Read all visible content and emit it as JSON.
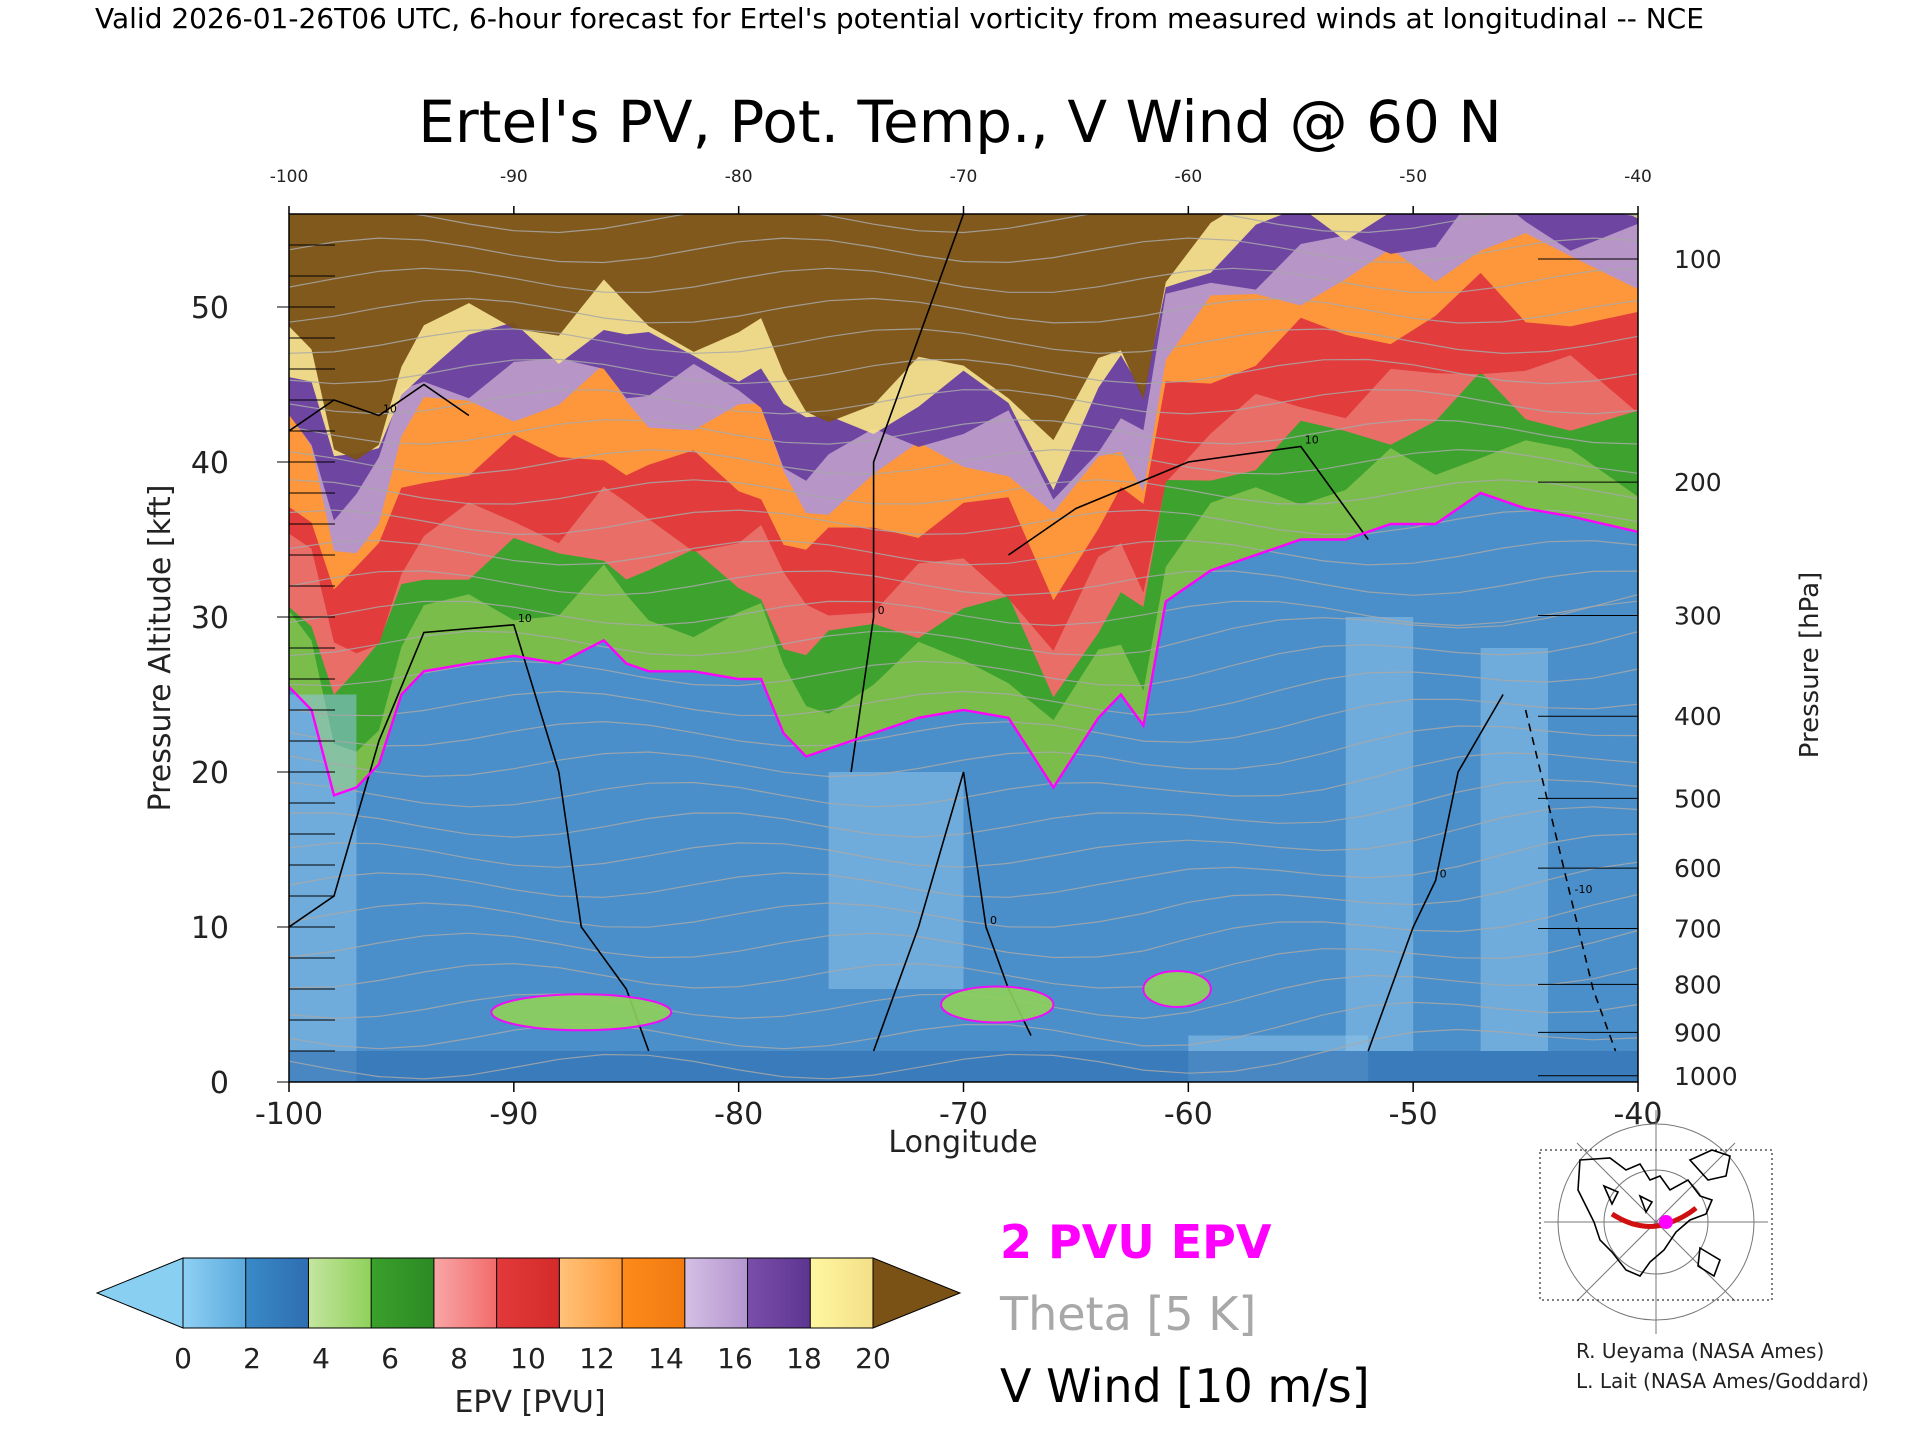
{
  "header": {
    "valid_line": "Valid 2026-01-26T06 UTC, 6-hour forecast for Ertel's potential vorticity from measured winds at longitudinal -- NCE"
  },
  "chart_data": {
    "type": "heatmap",
    "title": "Ertel's PV, Pot. Temp., V Wind @ 60 N",
    "xlabel": "Longitude",
    "ylabel_left": "Pressure Altitude [kft]",
    "ylabel_right": "Pressure [hPa]",
    "xlim": [
      -100,
      -40
    ],
    "ylim": [
      0,
      56
    ],
    "x_ticks": [
      "-100",
      "-90",
      "-80",
      "-70",
      "-60",
      "-50",
      "-40"
    ],
    "x_tick_values": [
      -100,
      -90,
      -80,
      -70,
      -60,
      -50,
      -40
    ],
    "x_ticks_top": [
      "-100",
      "-90",
      "-80",
      "-70",
      "-60",
      "-50",
      "-40"
    ],
    "y_ticks": [
      "0",
      "10",
      "20",
      "30",
      "40",
      "50"
    ],
    "y_tick_values": [
      0,
      10,
      20,
      30,
      40,
      50
    ],
    "pressure_ticks": [
      {
        "label": "1000",
        "kft": 0.4
      },
      {
        "label": "900",
        "kft": 3.2
      },
      {
        "label": "800",
        "kft": 6.3
      },
      {
        "label": "700",
        "kft": 9.9
      },
      {
        "label": "600",
        "kft": 13.8
      },
      {
        "label": "500",
        "kft": 18.3
      },
      {
        "label": "400",
        "kft": 23.6
      },
      {
        "label": "300",
        "kft": 30.1
      },
      {
        "label": "200",
        "kft": 38.7
      },
      {
        "label": "100",
        "kft": 53.1
      }
    ],
    "epv_surface_kft": [
      {
        "lon": -100,
        "kft": 25.5
      },
      {
        "lon": -99,
        "kft": 24
      },
      {
        "lon": -98,
        "kft": 18.5
      },
      {
        "lon": -97,
        "kft": 19
      },
      {
        "lon": -96,
        "kft": 20.5
      },
      {
        "lon": -95,
        "kft": 25
      },
      {
        "lon": -94,
        "kft": 26.5
      },
      {
        "lon": -92,
        "kft": 27
      },
      {
        "lon": -90,
        "kft": 27.5
      },
      {
        "lon": -88,
        "kft": 27
      },
      {
        "lon": -86,
        "kft": 28.5
      },
      {
        "lon": -85,
        "kft": 27
      },
      {
        "lon": -84,
        "kft": 26.5
      },
      {
        "lon": -82,
        "kft": 26.5
      },
      {
        "lon": -80,
        "kft": 26
      },
      {
        "lon": -79,
        "kft": 26
      },
      {
        "lon": -78,
        "kft": 22.5
      },
      {
        "lon": -77,
        "kft": 21
      },
      {
        "lon": -76,
        "kft": 21.5
      },
      {
        "lon": -74,
        "kft": 22.5
      },
      {
        "lon": -72,
        "kft": 23.5
      },
      {
        "lon": -70,
        "kft": 24
      },
      {
        "lon": -68,
        "kft": 23.5
      },
      {
        "lon": -66,
        "kft": 19
      },
      {
        "lon": -64,
        "kft": 23.5
      },
      {
        "lon": -63,
        "kft": 25
      },
      {
        "lon": -62,
        "kft": 23
      },
      {
        "lon": -61,
        "kft": 31
      },
      {
        "lon": -59,
        "kft": 33
      },
      {
        "lon": -57,
        "kft": 34
      },
      {
        "lon": -55,
        "kft": 35
      },
      {
        "lon": -53,
        "kft": 35
      },
      {
        "lon": -51,
        "kft": 36
      },
      {
        "lon": -49,
        "kft": 36
      },
      {
        "lon": -47,
        "kft": 38
      },
      {
        "lon": -45,
        "kft": 37
      },
      {
        "lon": -43,
        "kft": 36.5
      },
      {
        "lon": -40,
        "kft": 35.5
      }
    ],
    "v_wind_contours": [
      {
        "label": "10",
        "points": [
          [
            -100,
            42
          ],
          [
            -98,
            44
          ],
          [
            -96,
            43
          ],
          [
            -94,
            45
          ],
          [
            -92,
            43
          ]
        ]
      },
      {
        "label": "10",
        "points": [
          [
            -100,
            10
          ],
          [
            -98,
            12
          ],
          [
            -96,
            22
          ],
          [
            -94,
            29
          ],
          [
            -90,
            29.5
          ],
          [
            -88,
            20
          ],
          [
            -87,
            10
          ],
          [
            -85,
            6
          ],
          [
            -84,
            2
          ]
        ]
      },
      {
        "label": "0",
        "points": [
          [
            -74,
            2
          ],
          [
            -72,
            10
          ],
          [
            -70,
            20
          ],
          [
            -69,
            10
          ],
          [
            -68,
            6
          ],
          [
            -67,
            3
          ]
        ]
      },
      {
        "label": "10",
        "points": [
          [
            -68,
            34
          ],
          [
            -65,
            37
          ],
          [
            -60,
            40
          ],
          [
            -55,
            41
          ],
          [
            -53,
            37
          ],
          [
            -52,
            35
          ]
        ]
      },
      {
        "label": "0",
        "points": [
          [
            -70,
            56
          ],
          [
            -74,
            40
          ],
          [
            -74,
            30
          ],
          [
            -75,
            20
          ]
        ]
      },
      {
        "label": "0",
        "points": [
          [
            -52,
            2
          ],
          [
            -50,
            10
          ],
          [
            -49,
            13
          ],
          [
            -48,
            20
          ],
          [
            -46,
            25
          ]
        ]
      },
      {
        "label": "-10",
        "points": [
          [
            -45,
            24
          ],
          [
            -44,
            18
          ],
          [
            -43,
            12
          ],
          [
            -42,
            6
          ],
          [
            -41,
            2
          ]
        ]
      }
    ],
    "theta_K_range": [
      260,
      430
    ],
    "theta_step_K": 5,
    "v_wind_step_ms": 10
  },
  "colorbar": {
    "label": "EPV [PVU]",
    "ticks": [
      "0",
      "2",
      "4",
      "6",
      "8",
      "10",
      "12",
      "14",
      "16",
      "18",
      "20"
    ],
    "colors": [
      [
        "#8fd0f4",
        "#5aa9dd"
      ],
      [
        "#3a8ac8",
        "#2e6eb0"
      ],
      [
        "#c4e59f",
        "#8fd15a"
      ],
      [
        "#3aa02c",
        "#2c8a24"
      ],
      [
        "#f9a6a6",
        "#f26b6b"
      ],
      [
        "#e23a3a",
        "#d42a2a"
      ],
      [
        "#ffc27a",
        "#ff9c3c"
      ],
      [
        "#ff8a1a",
        "#f07a10"
      ],
      [
        "#d4c0e4",
        "#b395cf"
      ],
      [
        "#7a4eaa",
        "#5d3590"
      ],
      [
        "#fff7a0",
        "#f3e088"
      ]
    ],
    "under_color": "#88cff2",
    "over_color": "#7b5216"
  },
  "legend": {
    "epv_label": "2 PVU EPV",
    "epv_color": "#ff00ff",
    "theta_label": "Theta [5 K]",
    "theta_color": "#a8a8a8",
    "wind_label": "V Wind [10 m/s]",
    "wind_color": "#000000"
  },
  "credits": {
    "line1": "R. Ueyama (NASA Ames)",
    "line2": "L. Lait (NASA Ames/Goddard)"
  },
  "inset_map": {
    "icon": "polar-locator-map",
    "marker_color": "#ff00ff",
    "track_color": "#d01010"
  }
}
